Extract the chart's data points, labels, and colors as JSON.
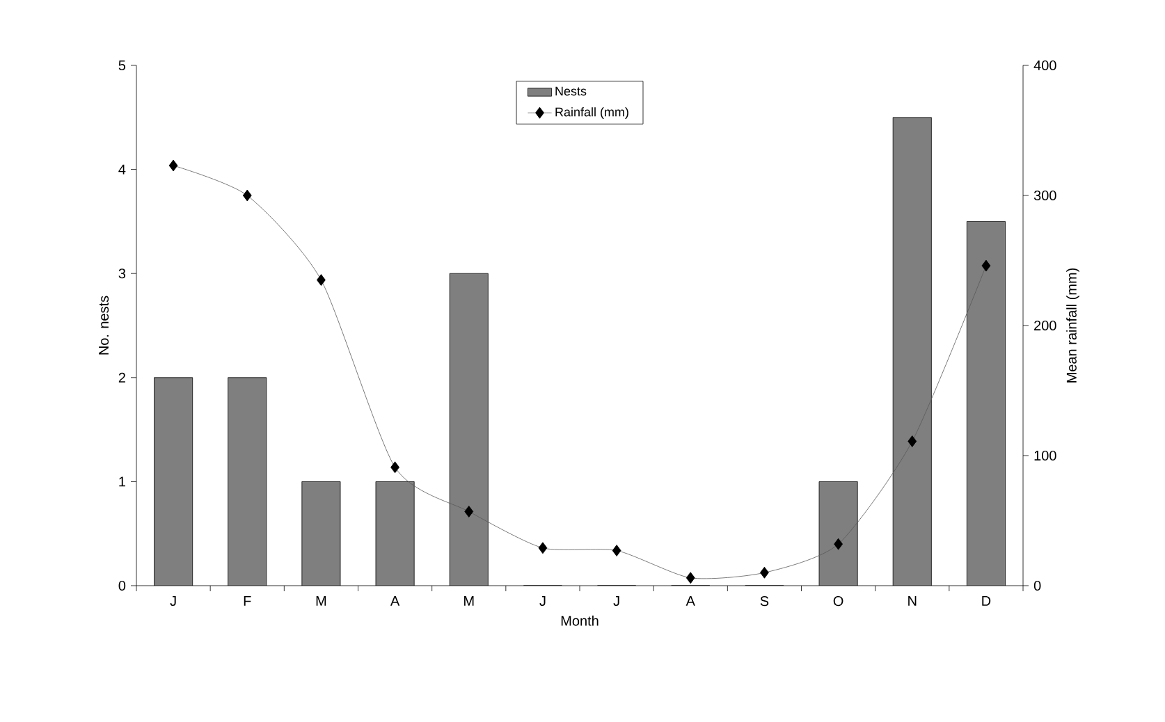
{
  "chart_data": {
    "type": "bar",
    "xlabel": "Month",
    "ylabel": "No. nests",
    "y2label": "Mean rainfall (mm)",
    "categories": [
      "J",
      "F",
      "M",
      "A",
      "M",
      "J",
      "J",
      "A",
      "S",
      "O",
      "N",
      "D"
    ],
    "series": [
      {
        "name": "Nests",
        "color": "#7f7f7f",
        "values": [
          2,
          2,
          1,
          1,
          3,
          0,
          0,
          0,
          0,
          1,
          4.5,
          3.5
        ]
      },
      {
        "name": "Rainfall (mm)",
        "type": "line",
        "axis": "y2",
        "color": "#000000",
        "marker": "diamond",
        "values": [
          323,
          300,
          235,
          91,
          57,
          29,
          27,
          6,
          10,
          32,
          111,
          246
        ]
      }
    ],
    "ylim": [
      0,
      5
    ],
    "yticks": [
      0,
      1,
      2,
      3,
      4,
      5
    ],
    "y2lim": [
      0,
      400
    ],
    "y2ticks": [
      0,
      100,
      200,
      300,
      400
    ],
    "grid": false,
    "legend": "top"
  }
}
